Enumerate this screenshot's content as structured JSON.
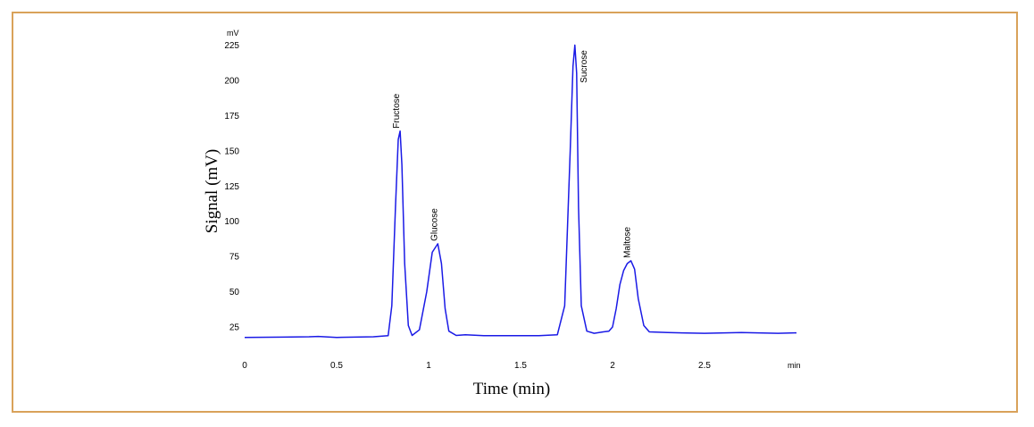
{
  "chart_data": {
    "type": "line",
    "title": "",
    "xlabel": "Time (min)",
    "ylabel": "Signal (mV)",
    "x_unit": "min",
    "y_unit": "mV",
    "xlim": [
      0,
      2.98
    ],
    "ylim": [
      13,
      230
    ],
    "x_ticks": [
      "0",
      "0.5",
      "1",
      "1.5",
      "2",
      "2.5"
    ],
    "y_ticks": [
      "25",
      "50",
      "75",
      "100",
      "125",
      "150",
      "175",
      "200",
      "225"
    ],
    "grid": false,
    "colors": {
      "trace": "#1a1ae6",
      "frame_border": "#d9a25a"
    },
    "series": [
      {
        "x": [
          0,
          0.2,
          0.35,
          0.4,
          0.5,
          0.7,
          0.78,
          0.8,
          0.82,
          0.835,
          0.845,
          0.855,
          0.87,
          0.89,
          0.91,
          0.95,
          0.99,
          1.02,
          1.05,
          1.07,
          1.09,
          1.11,
          1.15,
          1.2,
          1.3,
          1.4,
          1.5,
          1.6,
          1.7,
          1.74,
          1.77,
          1.785,
          1.795,
          1.805,
          1.815,
          1.83,
          1.86,
          1.9,
          1.95,
          1.98,
          2.0,
          2.02,
          2.04,
          2.06,
          2.08,
          2.1,
          2.12,
          2.14,
          2.17,
          2.2,
          2.3,
          2.5,
          2.7,
          2.9,
          3.0
        ],
        "y": [
          17.5,
          17.8,
          18,
          18.3,
          17.6,
          18,
          18.8,
          40,
          110,
          158,
          164,
          140,
          70,
          26,
          19,
          23,
          50,
          78,
          84,
          70,
          38,
          22,
          19,
          19.5,
          18.8,
          18.8,
          18.8,
          18.8,
          19.5,
          40,
          150,
          210,
          225,
          205,
          110,
          40,
          22,
          20.5,
          21.5,
          22,
          25,
          38,
          55,
          65,
          70,
          72,
          66,
          45,
          26,
          21.5,
          21,
          20.5,
          21,
          20.5,
          20.8
        ]
      }
    ],
    "peaks": [
      {
        "name": "Fructose",
        "x": 0.845,
        "y": 164
      },
      {
        "name": "Glucose",
        "x": 1.05,
        "y": 84
      },
      {
        "name": "Sucrose",
        "x": 1.795,
        "y": 225
      },
      {
        "name": "Maltose",
        "x": 2.1,
        "y": 72
      }
    ]
  }
}
